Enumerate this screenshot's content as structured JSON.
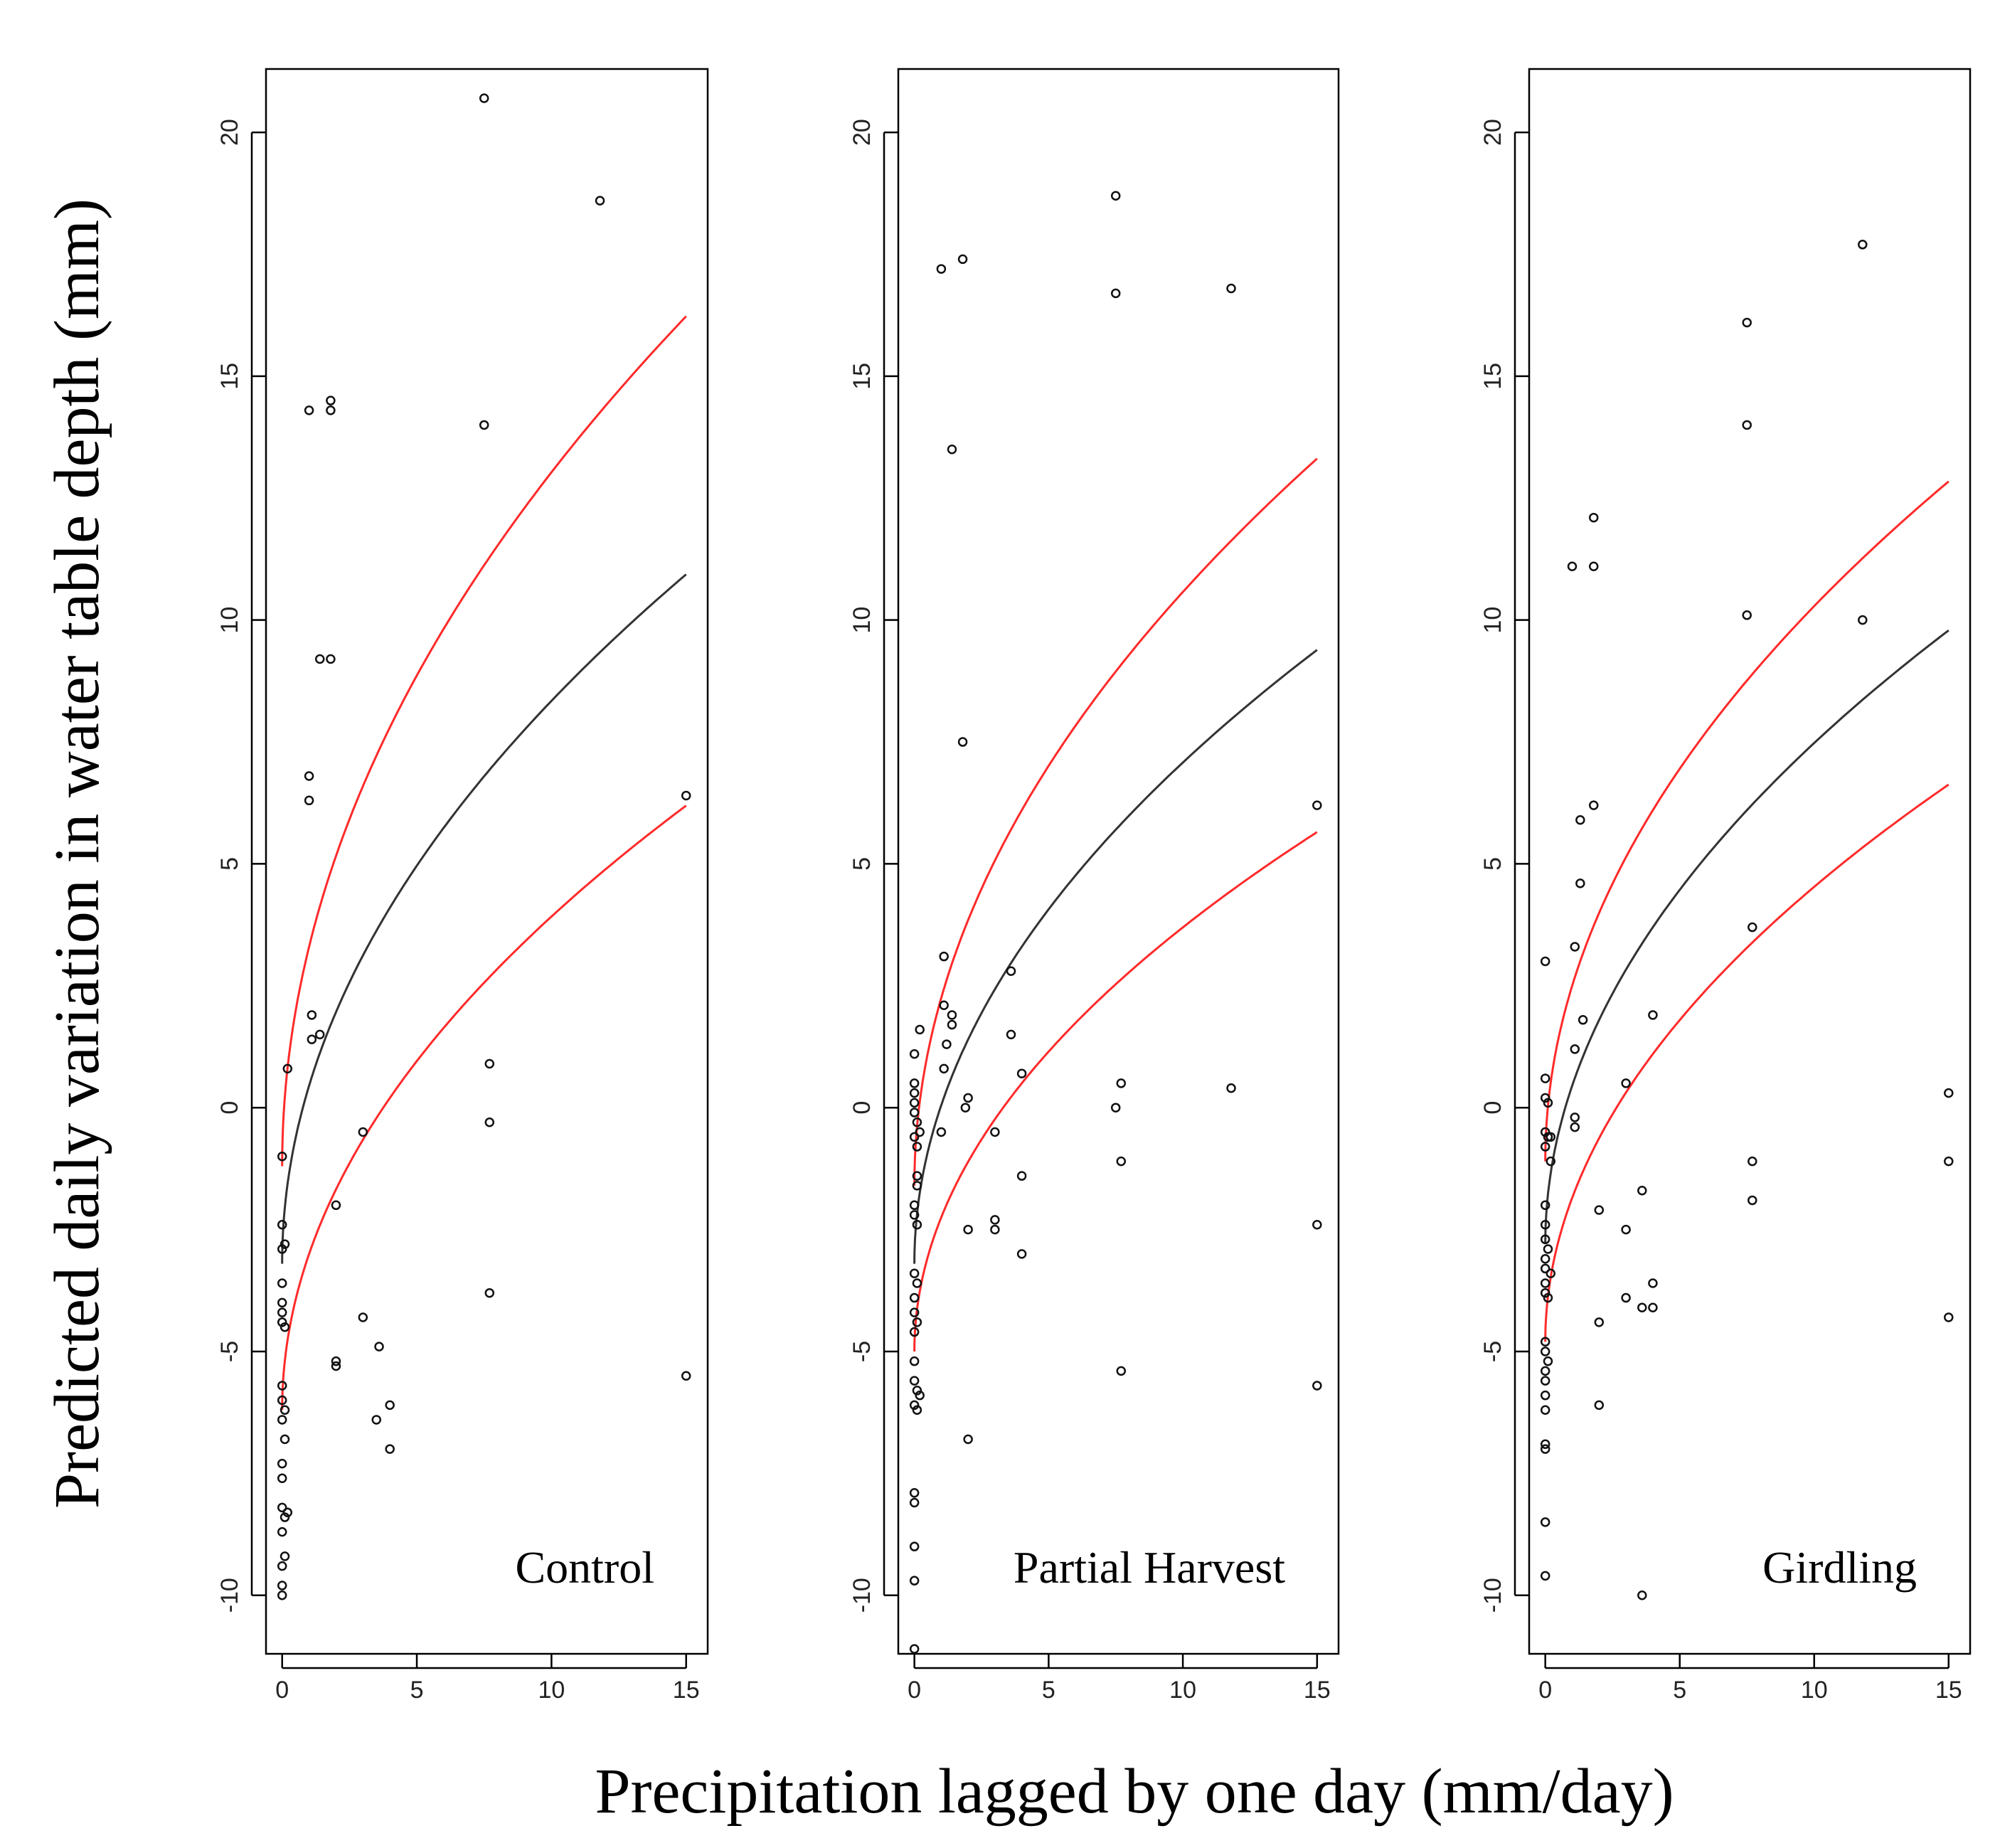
{
  "chart_data": {
    "type": "scatter",
    "ylabel": "Predicted daily variation in water table depth (mm)",
    "xlabel": "Precipitation lagged by one day (mm/day)",
    "xlim": [
      -0.6,
      15.8
    ],
    "ylim": [
      -11.2,
      21.3
    ],
    "xticks": [
      0,
      5,
      10,
      15
    ],
    "yticks": [
      -10,
      -5,
      0,
      5,
      10,
      15,
      20
    ],
    "grid": false,
    "colors": {
      "fit": "#333333",
      "band": "#ff2a2a",
      "points": "#111111"
    },
    "panels": [
      {
        "label": "Control",
        "fit": {
          "a": -3.2,
          "b": 3.65,
          "exponent": 0.5
        },
        "upper": {
          "a": -1.2,
          "b": 4.5,
          "exponent": 0.5
        },
        "lower": {
          "a": -6.2,
          "b": 3.2,
          "exponent": 0.5
        },
        "points": [
          [
            0,
            -1.0
          ],
          [
            0,
            -2.4
          ],
          [
            0,
            -2.9
          ],
          [
            0.1,
            -2.8
          ],
          [
            0,
            -3.6
          ],
          [
            0,
            -4.0
          ],
          [
            0,
            -4.2
          ],
          [
            0,
            -4.4
          ],
          [
            0.1,
            -4.5
          ],
          [
            0,
            -5.7
          ],
          [
            0,
            -6.0
          ],
          [
            0.1,
            -6.2
          ],
          [
            0,
            -6.4
          ],
          [
            0.1,
            -6.8
          ],
          [
            0,
            -7.3
          ],
          [
            0,
            -7.6
          ],
          [
            0,
            -8.2
          ],
          [
            0.1,
            -8.4
          ],
          [
            0.2,
            -8.3
          ],
          [
            0,
            -8.7
          ],
          [
            0.1,
            -9.2
          ],
          [
            0,
            -9.4
          ],
          [
            0,
            -9.8
          ],
          [
            0,
            -10.0
          ],
          [
            0.2,
            0.8
          ],
          [
            1.0,
            14.3
          ],
          [
            1.0,
            6.8
          ],
          [
            1.0,
            6.3
          ],
          [
            1.1,
            1.9
          ],
          [
            1.1,
            1.4
          ],
          [
            1.4,
            1.5
          ],
          [
            1.4,
            9.2
          ],
          [
            1.8,
            14.5
          ],
          [
            1.8,
            14.3
          ],
          [
            1.8,
            9.2
          ],
          [
            2.0,
            -2.0
          ],
          [
            2.0,
            -5.2
          ],
          [
            2.0,
            -5.3
          ],
          [
            3.0,
            -0.5
          ],
          [
            3.0,
            -4.3
          ],
          [
            3.5,
            -6.4
          ],
          [
            3.6,
            -4.9
          ],
          [
            4.0,
            -6.1
          ],
          [
            4.0,
            -7.0
          ],
          [
            7.5,
            20.7
          ],
          [
            7.5,
            14.0
          ],
          [
            7.7,
            0.9
          ],
          [
            7.7,
            -0.3
          ],
          [
            7.7,
            -3.8
          ],
          [
            11.8,
            18.6
          ],
          [
            15.0,
            6.4
          ],
          [
            15.0,
            -5.5
          ]
        ]
      },
      {
        "label": "Partial Harvest",
        "fit": {
          "a": -3.2,
          "b": 3.25,
          "exponent": 0.5
        },
        "upper": {
          "a": -1.6,
          "b": 3.85,
          "exponent": 0.5
        },
        "lower": {
          "a": -5.0,
          "b": 2.75,
          "exponent": 0.5
        },
        "points": [
          [
            0,
            1.1
          ],
          [
            0,
            0.5
          ],
          [
            0,
            0.3
          ],
          [
            0,
            0.1
          ],
          [
            0,
            -0.1
          ],
          [
            0.1,
            -0.3
          ],
          [
            0,
            -0.6
          ],
          [
            0.1,
            -0.8
          ],
          [
            0.2,
            1.6
          ],
          [
            0.2,
            -0.5
          ],
          [
            0.1,
            -1.4
          ],
          [
            0.1,
            -1.6
          ],
          [
            0,
            -2.0
          ],
          [
            0,
            -2.2
          ],
          [
            0.1,
            -2.4
          ],
          [
            0,
            -3.4
          ],
          [
            0.1,
            -3.6
          ],
          [
            0,
            -3.9
          ],
          [
            0,
            -4.2
          ],
          [
            0.1,
            -4.4
          ],
          [
            0,
            -4.6
          ],
          [
            0,
            -5.2
          ],
          [
            0,
            -5.6
          ],
          [
            0.1,
            -5.8
          ],
          [
            0.2,
            -5.9
          ],
          [
            0,
            -6.1
          ],
          [
            0.1,
            -6.2
          ],
          [
            0,
            -7.9
          ],
          [
            0,
            -8.1
          ],
          [
            0,
            -9.0
          ],
          [
            0,
            -9.7
          ],
          [
            0,
            -11.1
          ],
          [
            1.0,
            17.2
          ],
          [
            1.1,
            3.1
          ],
          [
            1.1,
            2.1
          ],
          [
            1.2,
            1.3
          ],
          [
            1.1,
            0.8
          ],
          [
            1.0,
            -0.5
          ],
          [
            1.4,
            13.5
          ],
          [
            1.4,
            1.9
          ],
          [
            1.4,
            1.7
          ],
          [
            1.8,
            17.4
          ],
          [
            1.8,
            7.5
          ],
          [
            1.9,
            0.0
          ],
          [
            2.0,
            0.2
          ],
          [
            2.0,
            -2.5
          ],
          [
            2.0,
            -6.8
          ],
          [
            3.0,
            -0.5
          ],
          [
            3.0,
            -2.3
          ],
          [
            3.0,
            -2.5
          ],
          [
            3.6,
            2.8
          ],
          [
            3.6,
            1.5
          ],
          [
            4.0,
            0.7
          ],
          [
            4.0,
            -1.4
          ],
          [
            4.0,
            -3.0
          ],
          [
            7.5,
            18.7
          ],
          [
            7.5,
            16.7
          ],
          [
            7.5,
            0.0
          ],
          [
            7.7,
            0.5
          ],
          [
            7.7,
            -1.1
          ],
          [
            7.7,
            -5.4
          ],
          [
            11.8,
            16.8
          ],
          [
            11.8,
            0.4
          ],
          [
            15.0,
            6.2
          ],
          [
            15.0,
            -2.4
          ],
          [
            15.0,
            -5.7
          ]
        ]
      },
      {
        "label": "Girdling",
        "fit": {
          "a": -2.8,
          "b": 3.25,
          "exponent": 0.5
        },
        "upper": {
          "a": -1.1,
          "b": 3.6,
          "exponent": 0.5
        },
        "lower": {
          "a": -4.8,
          "b": 2.95,
          "exponent": 0.5
        },
        "points": [
          [
            0,
            3.0
          ],
          [
            0,
            0.6
          ],
          [
            0,
            0.2
          ],
          [
            0.1,
            0.1
          ],
          [
            0,
            -0.5
          ],
          [
            0.1,
            -0.6
          ],
          [
            0,
            -0.8
          ],
          [
            0.2,
            -0.6
          ],
          [
            0.2,
            -1.1
          ],
          [
            0,
            -2.0
          ],
          [
            0,
            -2.4
          ],
          [
            0,
            -2.7
          ],
          [
            0.1,
            -2.9
          ],
          [
            0,
            -3.1
          ],
          [
            0,
            -3.3
          ],
          [
            0.2,
            -3.4
          ],
          [
            0,
            -3.6
          ],
          [
            0,
            -3.8
          ],
          [
            0.1,
            -3.9
          ],
          [
            0,
            -4.8
          ],
          [
            0,
            -5.0
          ],
          [
            0.1,
            -5.2
          ],
          [
            0,
            -5.4
          ],
          [
            0,
            -5.6
          ],
          [
            0,
            -5.9
          ],
          [
            0,
            -6.2
          ],
          [
            0,
            -6.9
          ],
          [
            0,
            -7.0
          ],
          [
            0,
            -8.5
          ],
          [
            0,
            -9.6
          ],
          [
            1.0,
            11.1
          ],
          [
            1.1,
            3.3
          ],
          [
            1.1,
            1.2
          ],
          [
            1.1,
            -0.2
          ],
          [
            1.1,
            -0.4
          ],
          [
            1.3,
            5.9
          ],
          [
            1.3,
            4.6
          ],
          [
            1.4,
            1.8
          ],
          [
            1.8,
            12.1
          ],
          [
            1.8,
            11.1
          ],
          [
            1.8,
            6.2
          ],
          [
            2.0,
            -2.1
          ],
          [
            2.0,
            -4.4
          ],
          [
            2.0,
            -6.1
          ],
          [
            3.0,
            0.5
          ],
          [
            3.0,
            -2.5
          ],
          [
            3.0,
            -3.9
          ],
          [
            3.6,
            -1.7
          ],
          [
            3.6,
            -4.1
          ],
          [
            3.6,
            -10.0
          ],
          [
            4.0,
            1.9
          ],
          [
            4.0,
            -3.6
          ],
          [
            4.0,
            -4.1
          ],
          [
            7.5,
            16.1
          ],
          [
            7.5,
            14.0
          ],
          [
            7.5,
            10.1
          ],
          [
            7.7,
            3.7
          ],
          [
            7.7,
            -1.1
          ],
          [
            7.7,
            -1.9
          ],
          [
            11.8,
            17.7
          ],
          [
            11.8,
            10.0
          ],
          [
            15.0,
            0.3
          ],
          [
            15.0,
            -1.1
          ],
          [
            15.0,
            -4.3
          ]
        ]
      }
    ]
  }
}
